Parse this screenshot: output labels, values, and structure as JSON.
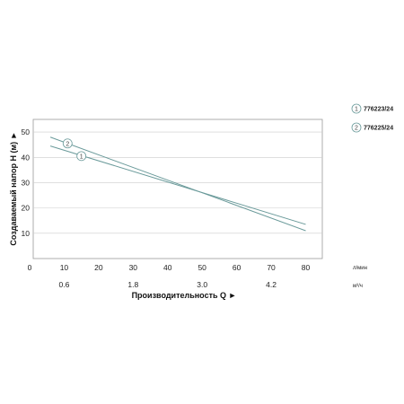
{
  "chart_data": {
    "type": "line",
    "xlabel": "Производительность Q ►",
    "ylabel": "Создаваемый напор H (м) ►",
    "x_unit": "л/мин",
    "x2_unit": "м³/ч",
    "x_ticks": [
      "0",
      "10",
      "20",
      "30",
      "40",
      "50",
      "60",
      "70",
      "80"
    ],
    "x2_ticks": [
      "0.6",
      "1.8",
      "3.0",
      "4.2"
    ],
    "x2_values": [
      0.6,
      1.8,
      3.0,
      4.2
    ],
    "y_ticks": [
      "10",
      "20",
      "30",
      "40",
      "50"
    ],
    "xlim": [
      0,
      80
    ],
    "ylim": [
      0,
      55
    ],
    "grid": true,
    "legend_position": "right",
    "series": [
      {
        "name": "776223/24",
        "marker": "1",
        "x": [
          6,
          80
        ],
        "y": [
          44.5,
          13.5
        ],
        "marker_at": [
          15,
          40.5
        ]
      },
      {
        "name": "776225/24",
        "marker": "2",
        "x": [
          6,
          80
        ],
        "y": [
          48,
          11
        ],
        "marker_at": [
          11,
          45.5
        ]
      }
    ],
    "colors": {
      "line": "#6a9a9a",
      "grid": "#cccccc",
      "frame": "#9a9a9a",
      "marker_fill": "#ffffff"
    }
  }
}
